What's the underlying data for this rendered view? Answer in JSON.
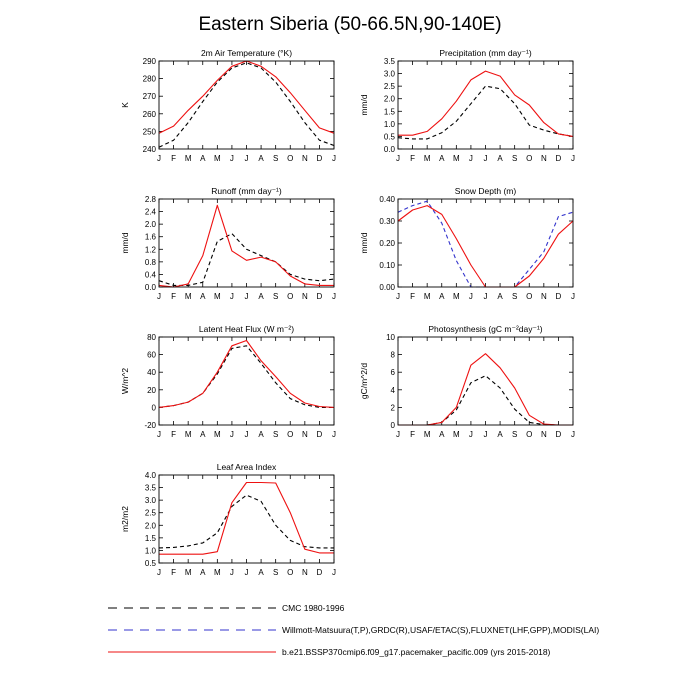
{
  "figure": {
    "title": "Eastern Siberia (50-66.5N,90-140E)"
  },
  "months": [
    "J",
    "F",
    "M",
    "A",
    "M",
    "J",
    "J",
    "A",
    "S",
    "O",
    "N",
    "D",
    "J"
  ],
  "legend": [
    {
      "label": "CMC 1980-1996",
      "color": "#000000",
      "style": "dashed"
    },
    {
      "label": "Willmott-Matsuura(T,P),GRDC(R),USAF/ETAC(S),FLUXNET(LHF,GPP),MODIS(LAI)",
      "color": "#3333cc",
      "style": "dashed"
    },
    {
      "label": "b.e21.BSSP370cmip6.f09_g17.pacemaker_pacific.009 (yrs 2015-2018)",
      "color": "#ee1111",
      "style": "solid"
    }
  ],
  "chart_data": [
    {
      "id": "temp",
      "type": "line",
      "title": "2m Air Temperature (°K)",
      "ylabel": "K",
      "ylim": [
        240,
        290
      ],
      "yticks": [
        240,
        250,
        260,
        270,
        280,
        290
      ],
      "series": [
        {
          "name": "CMC 1980-1996",
          "color": "#000000",
          "dash": true,
          "values": [
            241,
            245,
            255,
            267,
            278,
            286,
            289,
            286,
            278,
            267,
            255,
            245,
            242
          ]
        },
        {
          "name": "model",
          "color": "#ee1111",
          "dash": false,
          "values": [
            249,
            253,
            262,
            270,
            279,
            287,
            290,
            287,
            281,
            272,
            262,
            252,
            249
          ]
        }
      ]
    },
    {
      "id": "precip",
      "type": "line",
      "title": "Precipitation (mm day⁻¹)",
      "ylabel": "mm/d",
      "ylim": [
        0,
        3.5
      ],
      "yticks": [
        "0.0",
        "0.5",
        "1.0",
        "1.5",
        "2.0",
        "2.5",
        "3.0",
        "3.5"
      ],
      "series": [
        {
          "name": "CMC 1980-1996",
          "color": "#000000",
          "dash": true,
          "values": [
            0.45,
            0.4,
            0.4,
            0.65,
            1.1,
            1.8,
            2.5,
            2.4,
            1.8,
            0.95,
            0.75,
            0.6,
            0.5
          ]
        },
        {
          "name": "model",
          "color": "#ee1111",
          "dash": false,
          "values": [
            0.55,
            0.55,
            0.7,
            1.2,
            1.9,
            2.75,
            3.1,
            2.9,
            2.15,
            1.75,
            1.05,
            0.6,
            0.5
          ]
        }
      ]
    },
    {
      "id": "runoff",
      "type": "line",
      "title": "Runoff (mm day⁻¹)",
      "ylabel": "mm/d",
      "ylim": [
        0,
        2.8
      ],
      "yticks": [
        "0.0",
        "0.4",
        "0.8",
        "1.2",
        "1.6",
        "2.0",
        "2.4",
        "2.8"
      ],
      "series": [
        {
          "name": "CMC 1980-1996",
          "color": "#000000",
          "dash": true,
          "values": [
            0.2,
            0.05,
            0.05,
            0.15,
            1.45,
            1.7,
            1.2,
            1.0,
            0.8,
            0.4,
            0.25,
            0.2,
            0.25
          ]
        },
        {
          "name": "model",
          "color": "#ee1111",
          "dash": false,
          "values": [
            0.05,
            0.0,
            0.1,
            1.0,
            2.6,
            1.15,
            0.85,
            0.95,
            0.8,
            0.35,
            0.1,
            0.05,
            0.05
          ]
        }
      ]
    },
    {
      "id": "snow",
      "type": "line",
      "title": "Snow Depth (m)",
      "ylabel": "mm/d",
      "ylim": [
        0,
        0.4
      ],
      "yticks": [
        "0.00",
        "0.10",
        "0.20",
        "0.30",
        "0.40"
      ],
      "series": [
        {
          "name": "Willmott-Matsuura",
          "color": "#3333cc",
          "dash": true,
          "values": [
            0.34,
            0.37,
            0.39,
            0.29,
            0.12,
            0.0,
            0.0,
            0.0,
            0.0,
            0.08,
            0.16,
            0.32,
            0.34
          ]
        },
        {
          "name": "model",
          "color": "#ee1111",
          "dash": false,
          "values": [
            0.3,
            0.35,
            0.37,
            0.33,
            0.22,
            0.1,
            0.0,
            0.0,
            0.0,
            0.05,
            0.13,
            0.24,
            0.3
          ]
        }
      ]
    },
    {
      "id": "lhf",
      "type": "line",
      "title": "Latent Heat Flux (W m⁻²)",
      "ylabel": "W/m^2",
      "ylim": [
        -20,
        80
      ],
      "yticks": [
        "-20",
        "0",
        "20",
        "40",
        "60",
        "80"
      ],
      "series": [
        {
          "name": "CMC 1980-1996",
          "color": "#000000",
          "dash": true,
          "values": [
            0,
            2,
            6,
            16,
            38,
            67,
            70,
            50,
            28,
            10,
            3,
            0,
            0
          ]
        },
        {
          "name": "model",
          "color": "#ee1111",
          "dash": false,
          "values": [
            0,
            2,
            6,
            16,
            40,
            70,
            76,
            53,
            35,
            16,
            5,
            1,
            0
          ]
        }
      ]
    },
    {
      "id": "gpp",
      "type": "line",
      "title": "Photosynthesis (gC m⁻²day⁻¹)",
      "ylabel": "gC/m^2/d",
      "ylim": [
        0,
        10
      ],
      "yticks": [
        "0",
        "2",
        "4",
        "6",
        "8",
        "10"
      ],
      "series": [
        {
          "name": "CMC 1980-1996",
          "color": "#000000",
          "dash": true,
          "values": [
            0,
            0,
            0,
            0.3,
            1.7,
            4.8,
            5.6,
            4.2,
            1.8,
            0.3,
            0.05,
            0,
            0
          ]
        },
        {
          "name": "model",
          "color": "#ee1111",
          "dash": false,
          "values": [
            0,
            0,
            0,
            0.3,
            2.0,
            6.8,
            8.1,
            6.5,
            4.2,
            1.1,
            0.1,
            0,
            0
          ]
        }
      ]
    },
    {
      "id": "lai",
      "type": "line",
      "title": "Leaf Area Index",
      "ylabel": "m2/m2",
      "ylim": [
        0.5,
        4.0
      ],
      "yticks": [
        "0.5",
        "1.0",
        "1.5",
        "2.0",
        "2.5",
        "3.0",
        "3.5",
        "4.0"
      ],
      "series": [
        {
          "name": "CMC 1980-1996",
          "color": "#000000",
          "dash": true,
          "values": [
            1.1,
            1.12,
            1.18,
            1.3,
            1.7,
            2.75,
            3.2,
            2.95,
            2.0,
            1.4,
            1.15,
            1.1,
            1.1
          ]
        },
        {
          "name": "model",
          "color": "#ee1111",
          "dash": false,
          "values": [
            0.85,
            0.85,
            0.85,
            0.85,
            0.95,
            2.9,
            3.7,
            3.7,
            3.68,
            2.5,
            1.05,
            0.9,
            0.9
          ]
        }
      ]
    }
  ]
}
